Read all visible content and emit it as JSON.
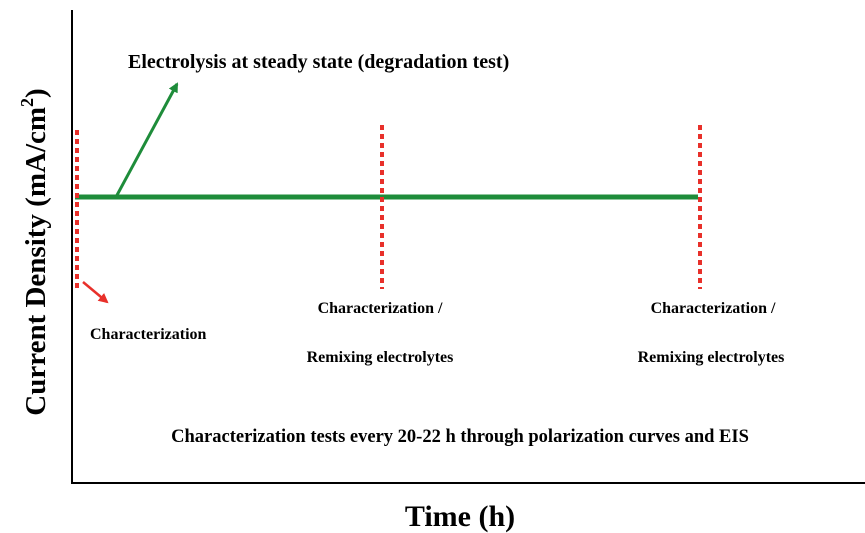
{
  "axes": {
    "x_label": "Time (h)",
    "y_label": {
      "text": "Current Density (mA/cm",
      "superscript": "2",
      "close": ")"
    }
  },
  "annotations": {
    "electrolysis": "Electrolysis at steady state (degradation test)",
    "initial": "Characterization",
    "stops": [
      {
        "line1": "Characterization /",
        "line2": "Remixing electrolytes"
      },
      {
        "line1": "Characterization /",
        "line2": "Remixing electrolytes"
      }
    ],
    "footer": "Characterization tests every 20-22 h through polarization curves and EIS"
  }
}
